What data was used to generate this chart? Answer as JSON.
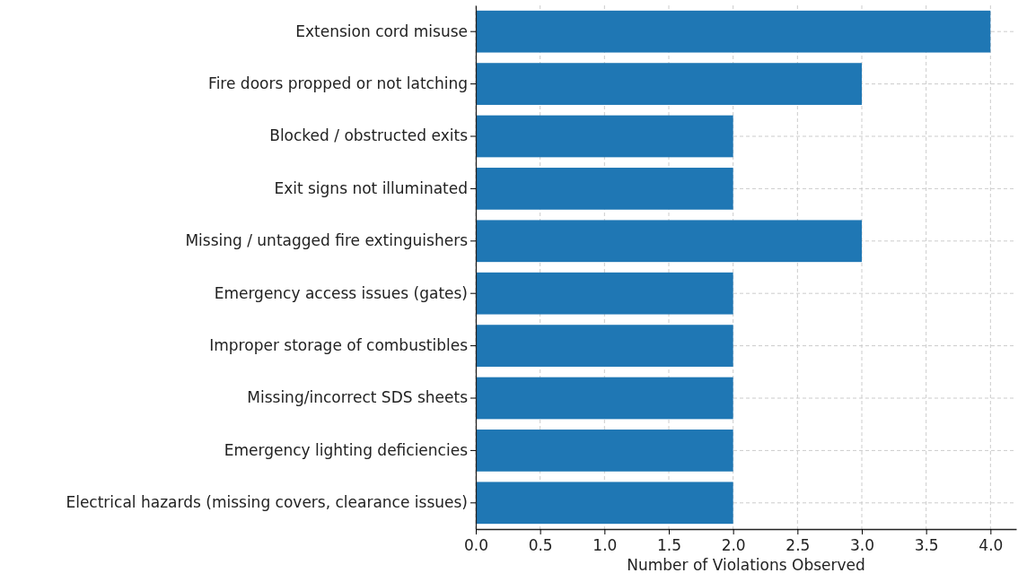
{
  "chart_data": {
    "type": "bar",
    "orientation": "horizontal",
    "xlabel": "Number of Violations Observed",
    "categories": [
      "Extension cord misuse",
      "Fire doors propped or not latching",
      "Blocked / obstructed exits",
      "Exit signs not illuminated",
      "Missing / untagged fire extinguishers",
      "Emergency access issues (gates)",
      "Improper storage of combustibles",
      "Missing/incorrect SDS sheets",
      "Emergency lighting deficiencies",
      "Electrical hazards (missing covers, clearance issues)"
    ],
    "values": [
      4,
      3,
      2,
      2,
      3,
      2,
      2,
      2,
      2,
      2
    ],
    "color": "#1f77b4",
    "xlim": [
      0,
      4.2
    ],
    "xticks": [
      {
        "value": 0,
        "label": "0.0"
      },
      {
        "value": 0.5,
        "label": "0.5"
      },
      {
        "value": 1,
        "label": "1.0"
      },
      {
        "value": 1.5,
        "label": "1.5"
      },
      {
        "value": 2,
        "label": "2.0"
      },
      {
        "value": 2.5,
        "label": "2.5"
      },
      {
        "value": 3,
        "label": "3.0"
      },
      {
        "value": 3.5,
        "label": "3.5"
      },
      {
        "value": 4,
        "label": "4.0"
      }
    ],
    "grid": true
  }
}
